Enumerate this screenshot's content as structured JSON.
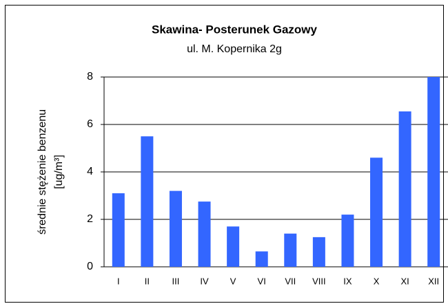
{
  "chart_data": {
    "type": "bar",
    "title": "Skawina- Posterunek Gazowy",
    "subtitle": "ul. M. Kopernika 2g",
    "y_label": [
      "średnie stężenie benzenu",
      "[ug/m³]"
    ],
    "categories": [
      "I",
      "II",
      "III",
      "IV",
      "V",
      "VI",
      "VII",
      "VIII",
      "IX",
      "X",
      "XI",
      "XII"
    ],
    "values": [
      3.1,
      5.5,
      3.2,
      2.75,
      1.7,
      0.65,
      1.4,
      1.25,
      2.2,
      4.6,
      6.55,
      8.0
    ],
    "color": "#3366ff",
    "ylim": [
      0,
      8
    ],
    "yticks": [
      0,
      2,
      4,
      6,
      8
    ],
    "grid": true
  }
}
